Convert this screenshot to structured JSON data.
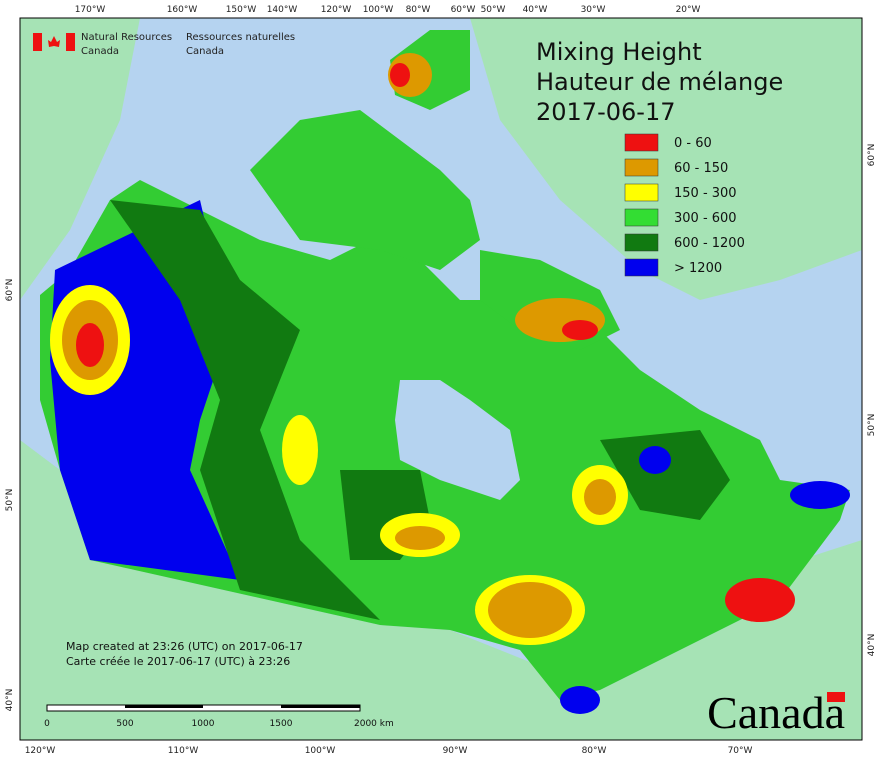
{
  "credits": [
    "Natural Resources",
    "Canada",
    "Ressources naturelles",
    "Canada"
  ],
  "title": [
    "Mixing Height",
    "Hauteur de mélange",
    "2017-06-17"
  ],
  "legend": [
    {
      "label": "0 - 60",
      "color": "#ee1111"
    },
    {
      "label": "60 - 150",
      "color": "#dd9900"
    },
    {
      "label": "150 - 300",
      "color": "#ffff00"
    },
    {
      "label": "300 - 600",
      "color": "#33dd33"
    },
    {
      "label": "600 - 1200",
      "color": "#117a11"
    },
    {
      "label": "> 1200",
      "color": "#0000ee"
    }
  ],
  "top_labels": [
    "170°W",
    "160°W",
    "150°W",
    "140°W",
    "120°W",
    "100°W",
    "80°W",
    "60°W",
    "50°W",
    "40°W",
    "30°W",
    "20°W"
  ],
  "bottom_labels": [
    "120°W",
    "110°W",
    "100°W",
    "90°W",
    "80°W",
    "70°W"
  ],
  "left_labels": [
    "60°N",
    "50°N",
    "40°N"
  ],
  "right_labels": [
    "60°N",
    "50°N",
    "40°N"
  ],
  "notes": [
    "Map created at 23:26 (UTC) on 2017-06-17",
    "Carte créée le 2017-06-17 (UTC) à 23:26"
  ],
  "scale_labels": [
    "0",
    "500",
    "1000",
    "1500",
    "2000 km"
  ],
  "wordmark": "Canada"
}
